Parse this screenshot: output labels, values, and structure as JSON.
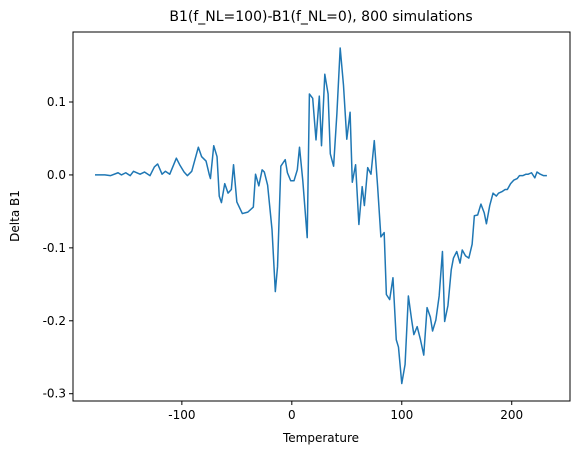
{
  "chart_data": {
    "type": "line",
    "title": "B1(f_NL=100)-B1(f_NL=0), 800 simulations",
    "x_label": "Temperature",
    "y_label": "Delta B1",
    "color": "#1f77b4",
    "grid": false,
    "x": [
      -179,
      -170,
      -165,
      -158,
      -155,
      -151,
      -147,
      -144,
      -138,
      -134,
      -129,
      -125,
      -122,
      -118,
      -115,
      -111,
      -105,
      -102,
      -98,
      -95,
      -91,
      -85,
      -82,
      -78,
      -75,
      -74,
      -71,
      -68,
      -66,
      -64,
      -61,
      -58,
      -55,
      -53,
      -50,
      -45,
      -40,
      -35,
      -33,
      -30,
      -27,
      -25,
      -22,
      -18,
      -15,
      -13,
      -10,
      -6,
      -4,
      -1,
      2,
      5,
      7,
      10,
      14,
      16,
      19,
      22,
      25,
      27,
      30,
      33,
      35,
      38,
      41,
      44,
      47,
      50,
      53,
      55,
      58,
      61,
      64,
      66,
      69,
      72,
      75,
      78,
      81,
      84,
      86,
      89,
      92,
      95,
      97,
      100,
      103,
      106,
      109,
      111,
      114,
      117,
      120,
      123,
      126,
      128,
      131,
      134,
      137,
      139,
      142,
      145,
      147,
      150,
      153,
      155,
      158,
      161,
      164,
      166,
      169,
      172,
      175,
      177,
      180,
      183,
      186,
      188,
      191,
      194,
      196,
      199,
      202,
      205,
      207,
      210,
      213,
      215,
      218,
      221,
      223,
      226,
      229,
      232
    ],
    "values": [
      0,
      0,
      -0.001,
      0.003,
      0,
      0.003,
      -0.001,
      0.005,
      0.001,
      0.004,
      -0.001,
      0.011,
      0.015,
      0.001,
      0.005,
      0.001,
      0.023,
      0.014,
      0.004,
      -0.001,
      0.005,
      0.038,
      0.025,
      0.019,
      0,
      -0.005,
      0.04,
      0.025,
      -0.029,
      -0.038,
      -0.012,
      -0.025,
      -0.02,
      0.014,
      -0.037,
      -0.053,
      -0.051,
      -0.044,
      0.001,
      -0.015,
      0.007,
      0.004,
      -0.014,
      -0.075,
      -0.16,
      -0.126,
      0.012,
      0.021,
      0.003,
      -0.008,
      -0.008,
      0.007,
      0.038,
      -0.008,
      -0.086,
      0.111,
      0.105,
      0.048,
      0.108,
      0.04,
      0.138,
      0.111,
      0.029,
      0.012,
      0.084,
      0.174,
      0.123,
      0.049,
      0.086,
      -0.01,
      0.014,
      -0.068,
      -0.016,
      -0.042,
      0.01,
      0.001,
      0.047,
      -0.015,
      -0.085,
      -0.079,
      -0.164,
      -0.171,
      -0.141,
      -0.226,
      -0.236,
      -0.286,
      -0.26,
      -0.166,
      -0.199,
      -0.219,
      -0.208,
      -0.226,
      -0.247,
      -0.182,
      -0.195,
      -0.214,
      -0.199,
      -0.166,
      -0.105,
      -0.201,
      -0.179,
      -0.13,
      -0.114,
      -0.105,
      -0.121,
      -0.103,
      -0.111,
      -0.114,
      -0.095,
      -0.056,
      -0.055,
      -0.04,
      -0.052,
      -0.067,
      -0.042,
      -0.025,
      -0.029,
      -0.025,
      -0.023,
      -0.02,
      -0.02,
      -0.012,
      -0.007,
      -0.005,
      -0.001,
      -0.001,
      0.001,
      0.001,
      0.003,
      -0.004,
      0.004,
      0.001,
      -0.001,
      -0.001
    ],
    "xlim": [
      -199,
      253
    ],
    "ylim": [
      -0.31,
      0.196
    ],
    "xticks": [
      -100,
      0,
      100,
      200
    ],
    "yticks": [
      -0.3,
      -0.2,
      -0.1,
      {
        "value": 0,
        "label": "0.0"
      },
      0.1
    ]
  }
}
